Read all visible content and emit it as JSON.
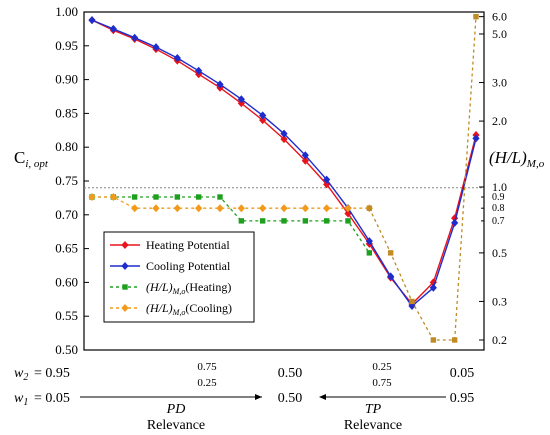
{
  "chart_data": {
    "type": "line",
    "y_left": {
      "label_main": "C",
      "label_sub": "i, opt",
      "ylim": [
        0.5,
        1.0
      ],
      "ticks": [
        "0.50",
        "0.55",
        "0.60",
        "0.65",
        "0.70",
        "0.75",
        "0.80",
        "0.85",
        "0.90",
        "0.95",
        "1.00"
      ]
    },
    "y_right": {
      "label_main": "(H/L)",
      "label_sub": "M,o",
      "scale": "log",
      "ylim": [
        0.18,
        6.3
      ],
      "ticks": [
        {
          "v": 0.2,
          "label": "0.2"
        },
        {
          "v": 0.3,
          "label": "0.3"
        },
        {
          "v": 0.5,
          "label": "0.5"
        },
        {
          "v": 1.0,
          "label": "1.0"
        },
        {
          "v": 2.0,
          "label": "2.0"
        },
        {
          "v": 3.0,
          "label": "3.0"
        },
        {
          "v": 5.0,
          "label": "5.0"
        },
        {
          "v": 6.0,
          "label": "6.0"
        }
      ],
      "small_ticks": [
        {
          "v": 0.9,
          "label": "0.9"
        },
        {
          "v": 0.8,
          "label": "0.8"
        },
        {
          "v": 0.7,
          "label": "0.7"
        }
      ]
    },
    "reference_line_y": 0.74,
    "x_steps": 17,
    "series": [
      {
        "name": "Heating Potential",
        "axis": "left",
        "color": "#e8141c",
        "marker": "diamond",
        "dash": "",
        "values": [
          0.988,
          0.973,
          0.96,
          0.945,
          0.928,
          0.908,
          0.888,
          0.865,
          0.84,
          0.812,
          0.78,
          0.745,
          0.702,
          0.657,
          0.607,
          0.568,
          0.6,
          0.695,
          0.818
        ]
      },
      {
        "name": "Cooling Potential",
        "axis": "left",
        "color": "#1f2ccc",
        "marker": "diamond",
        "dash": "",
        "values": [
          0.988,
          0.975,
          0.962,
          0.948,
          0.932,
          0.913,
          0.893,
          0.871,
          0.847,
          0.82,
          0.788,
          0.752,
          0.71,
          0.661,
          0.609,
          0.565,
          0.592,
          0.688,
          0.813
        ]
      },
      {
        "name_main": "(H/L)",
        "name_sub": "M,o",
        "name_suffix": "(Heating)",
        "axis": "right",
        "color": "#1ea01e",
        "marker": "square",
        "dash": "3,3",
        "values": [
          0.9,
          0.9,
          0.9,
          0.9,
          0.9,
          0.9,
          0.9,
          0.7,
          0.7,
          0.7,
          0.7,
          0.7,
          0.7,
          0.5
        ]
      },
      {
        "name_main": "(H/L)",
        "name_sub": "M,o",
        "name_suffix": "(Cooling)",
        "axis": "right",
        "color": "#f29a1a",
        "marker": "diamond",
        "dash": "3,3",
        "values": [
          0.9,
          0.9,
          0.8,
          0.8,
          0.8,
          0.8,
          0.8,
          0.8,
          0.8,
          0.8,
          0.8,
          0.8,
          0.8,
          0.8
        ]
      },
      {
        "name": "",
        "axis": "right",
        "color": "#c08a25",
        "marker": "square",
        "dash": "3,3",
        "x_start": 13,
        "values": [
          0.8,
          0.5,
          0.3,
          0.2,
          0.2,
          6.0
        ]
      }
    ],
    "x_weights": {
      "w2_symbol": "w",
      "w2_sub": "2",
      "w1_symbol": "w",
      "w1_sub": "1",
      "w2_labels": [
        "= 0.95",
        "0.75",
        "0.50",
        "0.25",
        "0.05"
      ],
      "w1_labels": [
        "= 0.05",
        "0.25",
        "0.50",
        "0.75",
        "0.95"
      ]
    },
    "relevance": [
      {
        "abbr": "PD",
        "label": "Relevance"
      },
      {
        "abbr": "TP",
        "label": "Relevance"
      }
    ]
  }
}
